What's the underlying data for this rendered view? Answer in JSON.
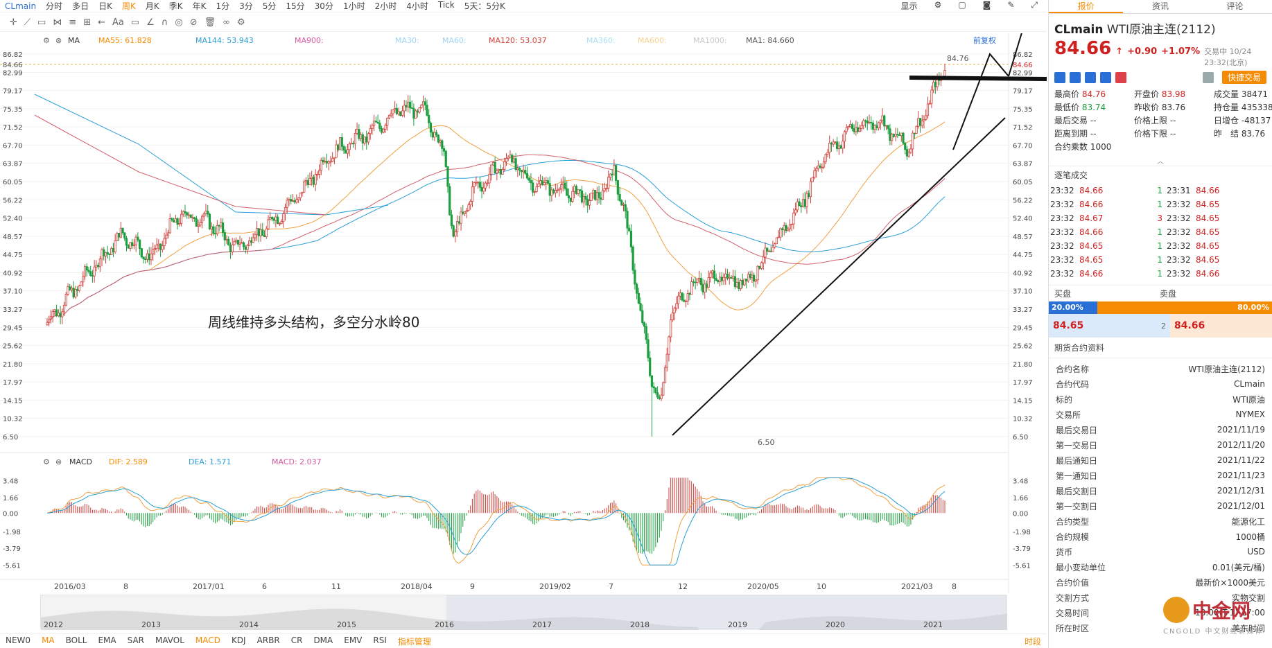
{
  "topbar": {
    "symbol": "CLmain",
    "periods": [
      "分时",
      "多日",
      "日K",
      "周K",
      "月K",
      "季K",
      "年K",
      "1分",
      "3分",
      "5分",
      "15分",
      "30分",
      "1小时",
      "2小时",
      "4小时",
      "Tick",
      "5天：5分K"
    ],
    "active_period": "周K",
    "display_label": "显示"
  },
  "ma_legend": {
    "ma_label": "MA",
    "items": [
      {
        "text": "MA55: 61.828",
        "color": "#f58b00"
      },
      {
        "text": "MA144: 53.943",
        "color": "#2a9fd6"
      },
      {
        "text": "MA900:",
        "color": "#d65aa0"
      },
      {
        "text": "MA30:",
        "color": "#9fd3f2"
      },
      {
        "text": "MA60:",
        "color": "#9fd3f2"
      },
      {
        "text": "MA120: 53.037",
        "color": "#d0403a"
      },
      {
        "text": "MA360:",
        "color": "#a8e0f5"
      },
      {
        "text": "MA600:",
        "color": "#f5d28f"
      },
      {
        "text": "MA1000:",
        "color": "#c8c8c8"
      },
      {
        "text": "MA1: 84.660",
        "color": "#555555"
      }
    ],
    "restore_label": "前复权"
  },
  "macd_legend": {
    "name": "MACD",
    "dif": "DIF: 2.589",
    "dea": "DEA: 1.571",
    "macd": "MACD: 2.037"
  },
  "annotation": "周线维持多头结构，多空分水岭80",
  "chart_data": {
    "type": "candlestick",
    "price_axis": [
      "86.82",
      "84.66",
      "82.99",
      "79.17",
      "75.35",
      "71.52",
      "67.70",
      "63.87",
      "60.05",
      "56.22",
      "52.40",
      "48.57",
      "44.75",
      "40.92",
      "37.10",
      "33.27",
      "29.45",
      "25.62",
      "21.80",
      "17.97",
      "14.15",
      "10.32",
      "6.50"
    ],
    "current_price": "84.66",
    "high_label": "84.76",
    "low_label": "6.50",
    "macd_axis": [
      "3.48",
      "1.66",
      "0.00",
      "-1.98",
      "-3.79",
      "-5.61"
    ],
    "time_axis": [
      "2016/03",
      "8",
      "2017/01",
      "6",
      "11",
      "2018/04",
      "9",
      "2019/02",
      "7",
      "12",
      "2020/05",
      "10",
      "2021/03",
      "8"
    ],
    "overview_years": [
      "2012",
      "2013",
      "2014",
      "2015",
      "2016",
      "2017",
      "2018",
      "2019",
      "2020",
      "2021"
    ],
    "colors": {
      "up": "#d0403a",
      "down": "#1b9e3e"
    }
  },
  "bottombar": {
    "items": [
      "NEW0",
      "MA",
      "BOLL",
      "EMA",
      "SAR",
      "MAVOL",
      "MACD",
      "KDJ",
      "ARBR",
      "CR",
      "DMA",
      "EMV",
      "RSI",
      "指标管理"
    ],
    "right": "时段"
  },
  "panel": {
    "tabs": [
      "报价",
      "资讯",
      "评论"
    ],
    "code": "CLmain",
    "name": "WTI原油主连(2112)",
    "price": "84.66",
    "change": "+0.90",
    "pct": "+1.07%",
    "status": "交易中 10/24 23:32(北京)",
    "quick": "快捷交易",
    "quote": [
      [
        "最高价",
        "84.76",
        "red"
      ],
      [
        "开盘价",
        "83.98",
        "red"
      ],
      [
        "成交量",
        "38471",
        ""
      ],
      [
        "最低价",
        "83.74",
        "green"
      ],
      [
        "昨收价",
        "83.76",
        ""
      ],
      [
        "持仓量",
        "435338",
        ""
      ],
      [
        "最后交易",
        "--",
        ""
      ],
      [
        "价格上限",
        "--",
        ""
      ],
      [
        "日增仓",
        "-48137",
        ""
      ],
      [
        "距离到期",
        "--",
        ""
      ],
      [
        "价格下限",
        "--",
        ""
      ],
      [
        "昨　结",
        "83.76",
        ""
      ],
      [
        "合约乘数",
        "1000",
        ""
      ],
      [
        "",
        "",
        ""
      ],
      [
        "",
        "",
        ""
      ]
    ],
    "ticks_title": "逐笔成交",
    "ticks": [
      [
        "23:32",
        "84.66",
        "1",
        "23:31",
        "84.66"
      ],
      [
        "23:32",
        "84.66",
        "1",
        "23:32",
        "84.65"
      ],
      [
        "23:32",
        "84.67",
        "3",
        "23:32",
        "84.65"
      ],
      [
        "23:32",
        "84.66",
        "1",
        "23:32",
        "84.65"
      ],
      [
        "23:32",
        "84.65",
        "1",
        "23:32",
        "84.65"
      ],
      [
        "23:32",
        "84.65",
        "1",
        "23:32",
        "84.65"
      ],
      [
        "23:32",
        "84.66",
        "1",
        "23:32",
        "84.66"
      ]
    ],
    "buy_label": "买盘",
    "sell_label": "卖盘",
    "buy_pct": "20.00%",
    "sell_pct": "80.00%",
    "bid_price": "84.65",
    "bid_vol": "2",
    "ask_price": "84.66",
    "info_title": "期货合约资料",
    "info": [
      [
        "合约名称",
        "WTI原油主连(2112)"
      ],
      [
        "合约代码",
        "CLmain"
      ],
      [
        "标的",
        "WTI原油"
      ],
      [
        "交易所",
        "NYMEX"
      ],
      [
        "最后交易日",
        "2021/11/19"
      ],
      [
        "第一交易日",
        "2012/11/20"
      ],
      [
        "最后通知日",
        "2021/11/22"
      ],
      [
        "第一通知日",
        "2021/11/23"
      ],
      [
        "最后交割日",
        "2021/12/31"
      ],
      [
        "第一交割日",
        "2021/12/01"
      ],
      [
        "合约类型",
        "能源化工"
      ],
      [
        "合约规模",
        "1000桶"
      ],
      [
        "货币",
        "USD"
      ],
      [
        "最小变动单位",
        "0.01(美元/桶)"
      ],
      [
        "合约价值",
        "最新价×1000美元"
      ],
      [
        "交割方式",
        "实物交割"
      ],
      [
        "交易时间",
        "18:00(T-1)-17:00"
      ],
      [
        "所在时区",
        "美东时间"
      ]
    ]
  },
  "watermark": {
    "brand": "中金网",
    "sub": "CNGOLD 中文财经新媒体"
  }
}
